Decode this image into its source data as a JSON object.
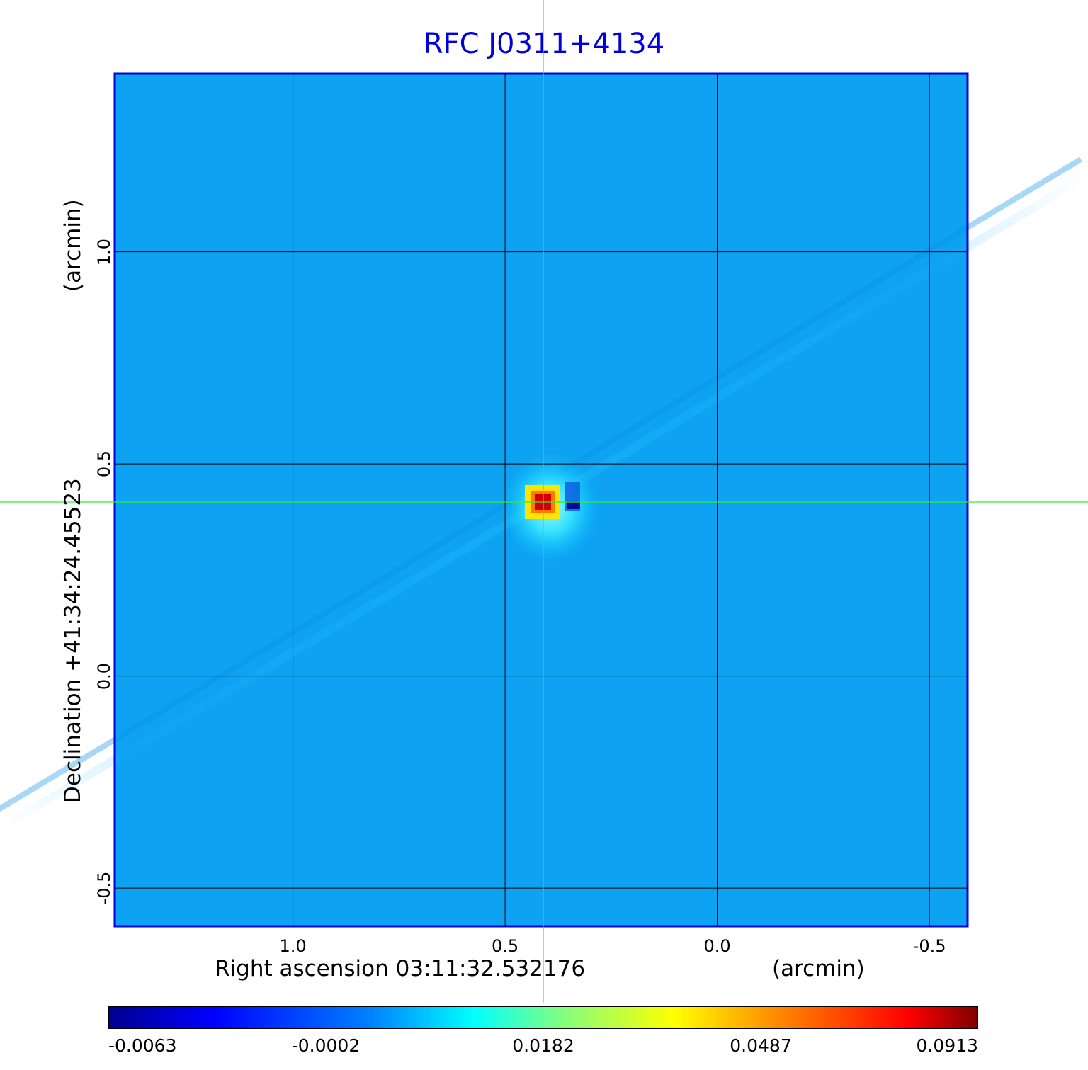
{
  "chart_data": {
    "type": "heatmap",
    "title": "RFC J0311+4134",
    "xlabel": "Right ascension  03:11:32.532176",
    "xunit": "(arcmin)",
    "ylabel": "Declination  +41:34:24.45523",
    "yunit": "(arcmin)",
    "x_ticks": [
      "1.0",
      "0.5",
      "0.0",
      "-0.5"
    ],
    "y_ticks": [
      "1.0",
      "0.5",
      "0.0",
      "-0.5"
    ],
    "x_tick_values": [
      1.0,
      0.5,
      0.0,
      -0.5
    ],
    "y_tick_values": [
      1.0,
      0.5,
      0.0,
      -0.5
    ],
    "xlim": [
      1.42,
      -0.59
    ],
    "ylim": [
      -0.59,
      1.42
    ],
    "grid": true,
    "crosshair": {
      "x": 0.41,
      "y": 0.41
    },
    "source": {
      "x": 0.41,
      "y": 0.41
    },
    "colorbar": {
      "colormap": "jet",
      "labels": [
        "-0.0063",
        "-0.0002",
        "0.0182",
        "0.0487",
        "0.0913"
      ],
      "values": [
        -0.0063,
        -0.0002,
        0.0182,
        0.0487,
        0.0913
      ]
    },
    "colors": {
      "background": "#0ea2f2",
      "frame": "#0000dd",
      "crosshair": "#33ee33",
      "grid": "#000000",
      "title": "#0000dd"
    }
  }
}
